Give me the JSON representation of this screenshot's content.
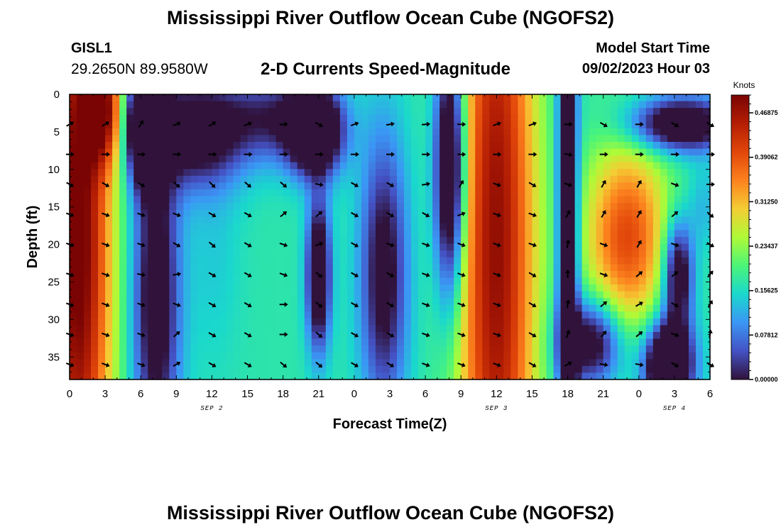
{
  "header": {
    "title": "Mississippi River Outflow Ocean Cube (NGOFS2)",
    "station": "GISL1",
    "coords": "29.2650N  89.9580W",
    "subtitle": "2-D Currents Speed-Magnitude",
    "model_start_label": "Model Start Time",
    "model_start_value": "09/02/2023 Hour 03"
  },
  "footer": {
    "title": "Mississippi River Outflow Ocean Cube (NGOFS2)"
  },
  "chart_data": {
    "type": "heatmap",
    "xlabel": "Forecast Time(Z)",
    "ylabel": "Depth (ft)",
    "x_ticks": [
      "0",
      "3",
      "6",
      "9",
      "12",
      "15",
      "18",
      "21",
      "0",
      "3",
      "6",
      "9",
      "12",
      "15",
      "18",
      "21",
      "0",
      "3",
      "6"
    ],
    "x_range_hours": [
      0,
      54
    ],
    "date_labels": [
      {
        "label": "SEP 2",
        "hour": 12
      },
      {
        "label": "SEP 3",
        "hour": 36
      },
      {
        "label": "SEP 4",
        "hour": 51
      }
    ],
    "y_ticks": [
      "0",
      "5",
      "10",
      "15",
      "20",
      "25",
      "30",
      "35"
    ],
    "y_range_ft": [
      0,
      38
    ],
    "colorbar": {
      "label": "Knots",
      "ticks": [
        "0.00000",
        "0.07812",
        "0.15625",
        "0.23437",
        "0.31250",
        "0.39062",
        "0.46875"
      ],
      "range": [
        0,
        0.5
      ]
    },
    "hotspots": [
      {
        "t": 0.7,
        "d": 20,
        "st": 2.0,
        "sd": 30,
        "v": 0.52
      },
      {
        "t": 2.8,
        "d": 2,
        "st": 1.2,
        "sd": 5,
        "v": 0.4
      },
      {
        "t": 6.3,
        "d": 4,
        "st": 1.0,
        "sd": 5,
        "v": -0.18
      },
      {
        "t": 7.3,
        "d": 27,
        "st": 1.4,
        "sd": 16,
        "v": -0.05
      },
      {
        "t": 12.2,
        "d": 20,
        "st": 1.6,
        "sd": 12,
        "v": 0.14
      },
      {
        "t": 10.5,
        "d": 5,
        "st": 3.0,
        "sd": 5,
        "v": -0.05
      },
      {
        "t": 17.3,
        "d": 3,
        "st": 3.0,
        "sd": 4,
        "v": 0.03
      },
      {
        "t": 20.7,
        "d": 5,
        "st": 1.6,
        "sd": 4,
        "v": -0.15
      },
      {
        "t": 21.0,
        "d": 24,
        "st": 0.7,
        "sd": 7,
        "v": -0.1
      },
      {
        "t": 24.3,
        "d": 22,
        "st": 1.0,
        "sd": 13,
        "v": 0.17
      },
      {
        "t": 26.5,
        "d": 24,
        "st": 1.4,
        "sd": 13,
        "v": -0.03
      },
      {
        "t": 32.1,
        "d": 10,
        "st": 0.9,
        "sd": 12,
        "v": -0.15
      },
      {
        "t": 36.0,
        "d": 20,
        "st": 2.3,
        "sd": 40,
        "v": 0.48
      },
      {
        "t": 47.0,
        "d": 19,
        "st": 2.5,
        "sd": 9,
        "v": 0.4
      },
      {
        "t": 51.5,
        "d": 4,
        "st": 3.0,
        "sd": 2.5,
        "v": -0.1
      },
      {
        "t": 50.5,
        "d": 36,
        "st": 1.4,
        "sd": 4,
        "v": -0.2
      },
      {
        "t": 51.3,
        "d": 24,
        "st": 0.9,
        "sd": 5,
        "v": -0.08
      },
      {
        "t": 53.4,
        "d": 15,
        "st": 0.9,
        "sd": 4,
        "v": 0.12
      },
      {
        "t": 44.0,
        "d": 33,
        "st": 1.8,
        "sd": 4,
        "v": -0.06
      },
      {
        "t": 42.0,
        "d": 18,
        "st": 0.6,
        "sd": 25,
        "v": -0.1
      }
    ],
    "vector_times": [
      0,
      3,
      6,
      9,
      12,
      15,
      18,
      21,
      24,
      27,
      30,
      33,
      36,
      39,
      42,
      45,
      48,
      51,
      54
    ],
    "vector_depths_ft": [
      4,
      8,
      12,
      16,
      20,
      24,
      28,
      32,
      36
    ],
    "vector_dirs_deg": [
      [
        330,
        330,
        300,
        340,
        330,
        340,
        355,
        30,
        340,
        350,
        355,
        0,
        340,
        340,
        0,
        30,
        0,
        30,
        30
      ],
      [
        0,
        0,
        0,
        0,
        0,
        0,
        0,
        0,
        0,
        0,
        0,
        0,
        0,
        0,
        10,
        0,
        0,
        0,
        0
      ],
      [
        30,
        30,
        30,
        40,
        45,
        40,
        40,
        10,
        30,
        30,
        350,
        300,
        20,
        30,
        20,
        300,
        300,
        20,
        0
      ],
      [
        20,
        20,
        20,
        20,
        30,
        30,
        320,
        320,
        30,
        30,
        30,
        340,
        20,
        20,
        300,
        300,
        300,
        320,
        40
      ],
      [
        20,
        20,
        20,
        30,
        40,
        30,
        20,
        340,
        30,
        20,
        20,
        20,
        20,
        20,
        280,
        20,
        300,
        20,
        30
      ],
      [
        20,
        20,
        10,
        350,
        30,
        30,
        20,
        40,
        30,
        30,
        20,
        20,
        20,
        30,
        270,
        20,
        320,
        320,
        310
      ],
      [
        20,
        20,
        20,
        20,
        30,
        30,
        0,
        40,
        30,
        30,
        20,
        20,
        20,
        30,
        280,
        320,
        330,
        30,
        300
      ],
      [
        20,
        20,
        20,
        320,
        30,
        30,
        0,
        40,
        30,
        30,
        20,
        20,
        20,
        30,
        290,
        310,
        320,
        20,
        280
      ],
      [
        20,
        20,
        20,
        330,
        30,
        30,
        40,
        40,
        30,
        30,
        20,
        20,
        20,
        30,
        330,
        10,
        10,
        30,
        30
      ]
    ]
  }
}
